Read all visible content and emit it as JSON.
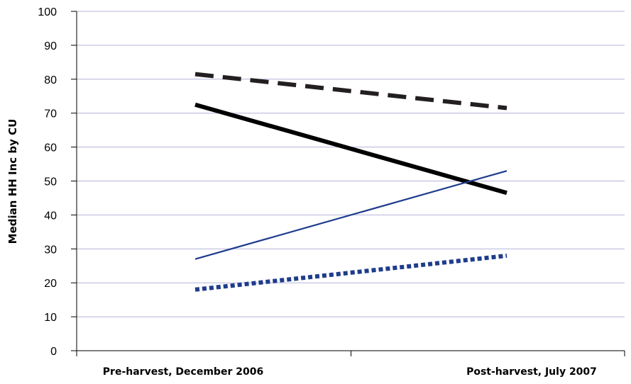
{
  "chart_data": {
    "type": "line",
    "title": "",
    "xlabel": "",
    "ylabel": "Median HH Inc by CU",
    "categories": [
      "Pre-harvest, December 2006",
      "Post-harvest, July 2007"
    ],
    "ylim": [
      0,
      100
    ],
    "yticks": [
      0,
      10,
      20,
      30,
      40,
      50,
      60,
      70,
      80,
      90,
      100
    ],
    "grid": true,
    "legend": "none",
    "series": [
      {
        "values": [
          81.5,
          71.5
        ],
        "color": "#231f20",
        "style": "dashed",
        "weight": "heavy"
      },
      {
        "values": [
          72.5,
          46.5
        ],
        "color": "#000000",
        "style": "solid",
        "weight": "heavy"
      },
      {
        "values": [
          27,
          53
        ],
        "color": "#1f3c8c",
        "style": "solid",
        "weight": "thin"
      },
      {
        "values": [
          18,
          28
        ],
        "color": "#1f3c8c",
        "style": "dotted",
        "weight": "heavy"
      }
    ],
    "colors": {
      "grid": "#b3b3d9",
      "axis": "#000000"
    }
  }
}
